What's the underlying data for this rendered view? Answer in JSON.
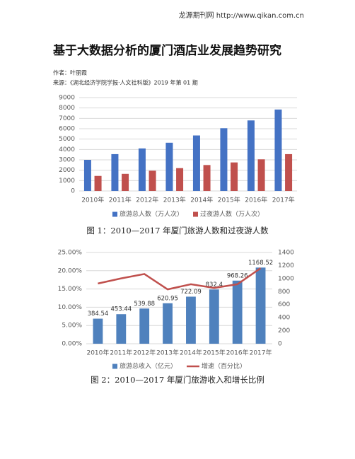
{
  "header": "龙源期刊网 http://www.qikan.com.cn",
  "title": "基于大数据分析的厦门酒店业发展趋势研究",
  "author": "作者：叶丽霞",
  "source": "来源：《湖北经济学院学报·人文社科版》2019 年第 01 期",
  "chart_data": [
    {
      "type": "bar",
      "caption": "图 1：2010—2017 年厦门旅游人数和过夜游人数",
      "categories": [
        "2010年",
        "2011年",
        "2012年",
        "2013年",
        "2014年",
        "2015年",
        "2016年",
        "2017年"
      ],
      "series": [
        {
          "name": "旅游总人数（万人次）",
          "color": "#4472c4",
          "values": [
            3000,
            3550,
            4100,
            4650,
            5350,
            6050,
            6800,
            7850
          ]
        },
        {
          "name": "过夜游人数（万人次）",
          "color": "#c0504d",
          "values": [
            1450,
            1650,
            1950,
            2200,
            2500,
            2750,
            3050,
            3550
          ]
        }
      ],
      "ylim": [
        0,
        9000
      ],
      "yticks": [
        0,
        1000,
        2000,
        3000,
        4000,
        5000,
        6000,
        7000,
        8000,
        9000
      ],
      "grid": true
    },
    {
      "type": "combo",
      "caption": "图 2：2010—2017 年厦门旅游收入和增长比例",
      "categories": [
        "2010年",
        "2011年",
        "2012年",
        "2013年",
        "2014年",
        "2015年",
        "2016年",
        "2017年"
      ],
      "series": [
        {
          "name": "旅游总收入（亿元）",
          "type": "bar",
          "axis": "y2",
          "color": "#4f81bd",
          "values": [
            384.54,
            453.44,
            539.88,
            620.95,
            722.09,
            832.4,
            968.26,
            1168.52
          ]
        },
        {
          "name": "增速（百分比）",
          "type": "line",
          "color": "#c0504d",
          "values": [
            16.5,
            17.9,
            19.1,
            14.9,
            16.3,
            15.3,
            16.3,
            20.7
          ]
        }
      ],
      "ylim": [
        0,
        25
      ],
      "yticks": [
        {
          "value": 0,
          "label": "0.00%"
        },
        {
          "value": 5,
          "label": "5.00%"
        },
        {
          "value": 10,
          "label": "10.00%"
        },
        {
          "value": 15,
          "label": "15.00%"
        },
        {
          "value": 20,
          "label": "20.00%"
        },
        {
          "value": 25,
          "label": "25.00%"
        }
      ],
      "y2lim": [
        0,
        1400
      ],
      "y2ticks": [
        0,
        200,
        400,
        600,
        800,
        1000,
        1200,
        1400
      ],
      "grid": true
    }
  ]
}
